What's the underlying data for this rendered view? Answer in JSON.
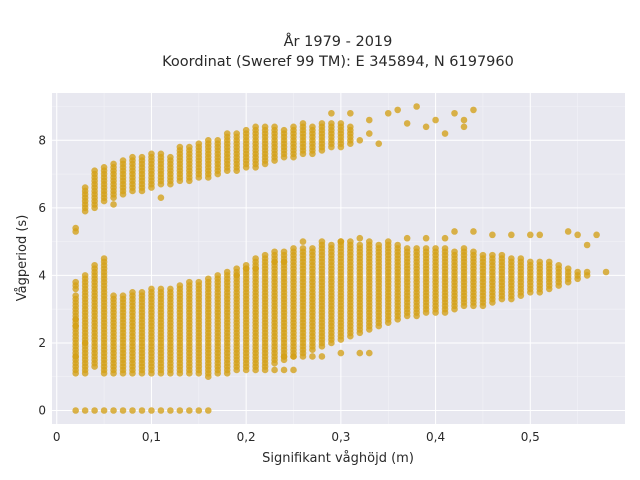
{
  "chart_data": {
    "type": "scatter",
    "title_line1": "År 1979 - 2019",
    "title_line2": "Koordinat (Sweref 99 TM): E 345894, N 6197960",
    "xlabel": "Signifikant våghöjd (m)",
    "ylabel": "Vågperiod (s)",
    "xlim": [
      -0.005,
      0.6
    ],
    "ylim": [
      -0.4,
      9.4
    ],
    "xticks": [
      0,
      0.1,
      0.2,
      0.3,
      0.4,
      0.5
    ],
    "xtick_labels": [
      "0",
      "0,1",
      "0,2",
      "0,3",
      "0,4",
      "0,5"
    ],
    "yticks": [
      0,
      2,
      4,
      6,
      8
    ],
    "ytick_labels": [
      "0",
      "2",
      "4",
      "6",
      "8"
    ],
    "grid": true,
    "marker_color": "#d4a017",
    "background_color": "#e8e8f0",
    "series": [
      {
        "columns": [
          [
            0.02,
            1.1,
            3.4
          ],
          [
            0.02,
            3.6,
            3.8
          ],
          [
            0.02,
            5.3,
            5.4
          ],
          [
            0.03,
            1.1,
            4.0
          ],
          [
            0.03,
            5.9,
            6.6
          ],
          [
            0.04,
            1.3,
            4.3
          ],
          [
            0.04,
            6.0,
            7.1
          ],
          [
            0.05,
            1.1,
            4.5
          ],
          [
            0.05,
            6.2,
            7.2
          ],
          [
            0.06,
            1.1,
            3.4
          ],
          [
            0.06,
            6.3,
            7.3
          ],
          [
            0.07,
            1.1,
            3.4
          ],
          [
            0.07,
            6.4,
            7.4
          ],
          [
            0.08,
            1.1,
            3.5
          ],
          [
            0.08,
            6.5,
            7.5
          ],
          [
            0.09,
            1.1,
            3.5
          ],
          [
            0.09,
            6.5,
            7.5
          ],
          [
            0.1,
            1.1,
            3.6
          ],
          [
            0.1,
            6.6,
            7.6
          ],
          [
            0.11,
            1.1,
            3.6
          ],
          [
            0.11,
            6.7,
            7.6
          ],
          [
            0.12,
            1.1,
            3.6
          ],
          [
            0.12,
            6.7,
            7.5
          ],
          [
            0.13,
            1.1,
            3.7
          ],
          [
            0.13,
            6.8,
            7.8
          ],
          [
            0.14,
            1.1,
            3.7
          ],
          [
            0.14,
            6.8,
            7.8
          ],
          [
            0.15,
            1.1,
            3.8
          ],
          [
            0.15,
            6.9,
            7.9
          ],
          [
            0.16,
            1.0,
            3.9
          ],
          [
            0.16,
            6.9,
            8.0
          ],
          [
            0.17,
            1.1,
            4.0
          ],
          [
            0.17,
            7.0,
            8.0
          ],
          [
            0.18,
            1.1,
            4.1
          ],
          [
            0.18,
            7.1,
            8.2
          ],
          [
            0.19,
            1.2,
            4.2
          ],
          [
            0.19,
            7.1,
            8.2
          ],
          [
            0.2,
            1.2,
            4.3
          ],
          [
            0.2,
            7.2,
            8.3
          ],
          [
            0.21,
            1.2,
            4.5
          ],
          [
            0.21,
            7.2,
            8.4
          ],
          [
            0.22,
            1.3,
            4.6
          ],
          [
            0.22,
            7.3,
            8.4
          ],
          [
            0.23,
            1.4,
            4.7
          ],
          [
            0.23,
            7.4,
            8.4
          ],
          [
            0.24,
            1.5,
            4.7
          ],
          [
            0.24,
            7.5,
            8.3
          ],
          [
            0.25,
            1.6,
            4.8
          ],
          [
            0.25,
            7.5,
            8.4
          ],
          [
            0.26,
            1.7,
            4.8
          ],
          [
            0.26,
            7.6,
            8.5
          ],
          [
            0.27,
            1.8,
            4.8
          ],
          [
            0.27,
            7.6,
            8.4
          ],
          [
            0.28,
            1.9,
            4.9
          ],
          [
            0.28,
            7.7,
            8.5
          ],
          [
            0.29,
            2.0,
            4.9
          ],
          [
            0.29,
            7.8,
            8.5
          ],
          [
            0.3,
            2.1,
            5.0
          ],
          [
            0.3,
            7.8,
            8.5
          ],
          [
            0.31,
            2.2,
            5.0
          ],
          [
            0.31,
            7.9,
            8.4
          ],
          [
            0.32,
            2.3,
            4.9
          ],
          [
            0.33,
            2.4,
            5.0
          ],
          [
            0.34,
            2.5,
            4.9
          ],
          [
            0.35,
            2.6,
            4.9
          ],
          [
            0.36,
            2.7,
            4.9
          ],
          [
            0.37,
            2.8,
            4.8
          ],
          [
            0.38,
            2.8,
            4.8
          ],
          [
            0.39,
            2.9,
            4.8
          ],
          [
            0.4,
            2.9,
            4.8
          ],
          [
            0.41,
            2.9,
            4.8
          ],
          [
            0.42,
            3.0,
            4.7
          ],
          [
            0.43,
            3.1,
            4.8
          ],
          [
            0.44,
            3.1,
            4.7
          ],
          [
            0.45,
            3.1,
            4.6
          ],
          [
            0.46,
            3.2,
            4.6
          ],
          [
            0.47,
            3.3,
            4.6
          ],
          [
            0.48,
            3.3,
            4.5
          ],
          [
            0.49,
            3.4,
            4.5
          ],
          [
            0.5,
            3.5,
            4.4
          ],
          [
            0.51,
            3.5,
            4.4
          ],
          [
            0.52,
            3.6,
            4.4
          ],
          [
            0.53,
            3.7,
            4.3
          ],
          [
            0.54,
            3.8,
            4.2
          ],
          [
            0.55,
            3.9,
            4.1
          ],
          [
            0.56,
            4.0,
            4.1
          ]
        ],
        "points": [
          [
            0.02,
            0
          ],
          [
            0.03,
            0
          ],
          [
            0.04,
            0
          ],
          [
            0.05,
            0
          ],
          [
            0.06,
            0
          ],
          [
            0.07,
            0
          ],
          [
            0.08,
            0
          ],
          [
            0.09,
            0
          ],
          [
            0.1,
            0
          ],
          [
            0.11,
            0
          ],
          [
            0.12,
            0
          ],
          [
            0.13,
            0
          ],
          [
            0.14,
            0
          ],
          [
            0.15,
            0
          ],
          [
            0.16,
            0
          ],
          [
            0.02,
            2.7
          ],
          [
            0.02,
            2.5
          ],
          [
            0.03,
            2.0
          ],
          [
            0.02,
            1.6
          ],
          [
            0.06,
            6.1
          ],
          [
            0.11,
            6.3
          ],
          [
            0.14,
            3.8
          ],
          [
            0.19,
            4.0
          ],
          [
            0.2,
            4.2
          ],
          [
            0.21,
            4.2
          ],
          [
            0.23,
            4.4
          ],
          [
            0.24,
            4.4
          ],
          [
            0.22,
            1.2
          ],
          [
            0.23,
            1.2
          ],
          [
            0.24,
            1.2
          ],
          [
            0.25,
            1.2
          ],
          [
            0.24,
            1.6
          ],
          [
            0.25,
            1.6
          ],
          [
            0.26,
            1.6
          ],
          [
            0.27,
            1.6
          ],
          [
            0.28,
            1.6
          ],
          [
            0.3,
            1.7
          ],
          [
            0.32,
            1.7
          ],
          [
            0.33,
            1.7
          ],
          [
            0.26,
            5.0
          ],
          [
            0.28,
            5.0
          ],
          [
            0.3,
            5.0
          ],
          [
            0.32,
            5.1
          ],
          [
            0.35,
            5.0
          ],
          [
            0.37,
            5.1
          ],
          [
            0.39,
            5.1
          ],
          [
            0.41,
            5.1
          ],
          [
            0.42,
            5.3
          ],
          [
            0.44,
            5.3
          ],
          [
            0.46,
            5.2
          ],
          [
            0.48,
            5.2
          ],
          [
            0.5,
            5.2
          ],
          [
            0.51,
            5.2
          ],
          [
            0.54,
            5.3
          ],
          [
            0.55,
            5.2
          ],
          [
            0.56,
            4.9
          ],
          [
            0.57,
            5.2
          ],
          [
            0.58,
            4.1
          ],
          [
            0.29,
            8.8
          ],
          [
            0.31,
            8.8
          ],
          [
            0.33,
            8.6
          ],
          [
            0.35,
            8.8
          ],
          [
            0.36,
            8.9
          ],
          [
            0.37,
            8.5
          ],
          [
            0.38,
            9.0
          ],
          [
            0.39,
            8.4
          ],
          [
            0.4,
            8.6
          ],
          [
            0.41,
            8.2
          ],
          [
            0.42,
            8.8
          ],
          [
            0.43,
            8.6
          ],
          [
            0.44,
            8.9
          ],
          [
            0.43,
            8.4
          ],
          [
            0.32,
            8.0
          ],
          [
            0.33,
            8.2
          ],
          [
            0.34,
            7.9
          ]
        ]
      }
    ]
  }
}
